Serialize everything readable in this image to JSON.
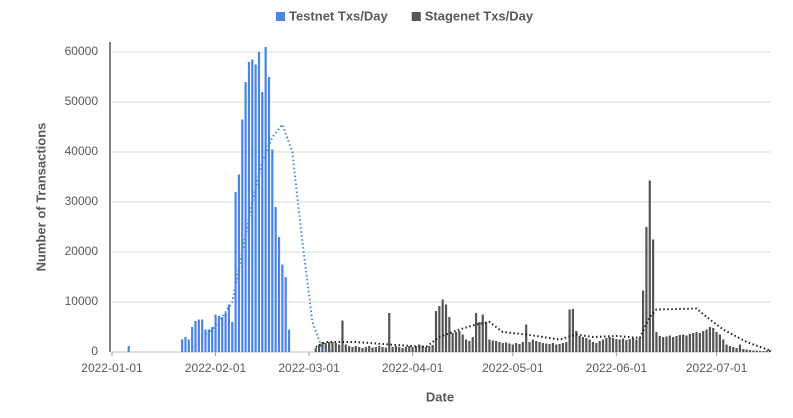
{
  "chart_data": {
    "type": "bar",
    "x_label": "Date",
    "y_label": "Number of Transactions",
    "xlim": [
      "2022-01-01",
      "2022-07-17"
    ],
    "xticks": [
      "2022-01-01",
      "2022-02-01",
      "2022-03-01",
      "2022-04-01",
      "2022-05-01",
      "2022-06-01",
      "2022-07-01"
    ],
    "ylim": [
      0,
      62000
    ],
    "yticks": [
      0,
      10000,
      20000,
      30000,
      40000,
      50000,
      60000
    ],
    "grid": true,
    "legend": "top",
    "series": [
      {
        "name": "Testnet Txs/Day",
        "color": "#4a86e0",
        "style": "bar",
        "x": [
          "2022-01-06",
          "2022-01-22",
          "2022-01-23",
          "2022-01-24",
          "2022-01-25",
          "2022-01-26",
          "2022-01-27",
          "2022-01-28",
          "2022-01-29",
          "2022-01-30",
          "2022-01-31",
          "2022-02-01",
          "2022-02-02",
          "2022-02-03",
          "2022-02-04",
          "2022-02-05",
          "2022-02-06",
          "2022-02-07",
          "2022-02-08",
          "2022-02-09",
          "2022-02-10",
          "2022-02-11",
          "2022-02-12",
          "2022-02-13",
          "2022-02-14",
          "2022-02-15",
          "2022-02-16",
          "2022-02-17",
          "2022-02-18",
          "2022-02-19",
          "2022-02-20",
          "2022-02-21",
          "2022-02-22",
          "2022-02-23"
        ],
        "values": [
          1200,
          2500,
          3000,
          2500,
          5000,
          6200,
          6500,
          6500,
          4500,
          4500,
          5000,
          7500,
          7200,
          7000,
          7800,
          9500,
          6000,
          32000,
          35500,
          46500,
          54000,
          58000,
          58500,
          57500,
          60000,
          52000,
          61000,
          55000,
          40500,
          29000,
          23000,
          17500,
          15000,
          4500
        ]
      },
      {
        "name": "Stagenet Txs/Day",
        "color": "#555555",
        "style": "bar",
        "x": [
          "2022-03-03",
          "2022-03-04",
          "2022-03-05",
          "2022-03-06",
          "2022-03-07",
          "2022-03-08",
          "2022-03-09",
          "2022-03-10",
          "2022-03-11",
          "2022-03-12",
          "2022-03-13",
          "2022-03-14",
          "2022-03-15",
          "2022-03-16",
          "2022-03-17",
          "2022-03-18",
          "2022-03-19",
          "2022-03-20",
          "2022-03-21",
          "2022-03-22",
          "2022-03-23",
          "2022-03-24",
          "2022-03-25",
          "2022-03-26",
          "2022-03-27",
          "2022-03-28",
          "2022-03-29",
          "2022-03-30",
          "2022-03-31",
          "2022-04-01",
          "2022-04-02",
          "2022-04-03",
          "2022-04-04",
          "2022-04-05",
          "2022-04-06",
          "2022-04-07",
          "2022-04-08",
          "2022-04-09",
          "2022-04-10",
          "2022-04-11",
          "2022-04-12",
          "2022-04-13",
          "2022-04-14",
          "2022-04-15",
          "2022-04-16",
          "2022-04-17",
          "2022-04-18",
          "2022-04-19",
          "2022-04-20",
          "2022-04-21",
          "2022-04-22",
          "2022-04-23",
          "2022-04-24",
          "2022-04-25",
          "2022-04-26",
          "2022-04-27",
          "2022-04-28",
          "2022-04-29",
          "2022-04-30",
          "2022-05-01",
          "2022-05-02",
          "2022-05-03",
          "2022-05-04",
          "2022-05-05",
          "2022-05-06",
          "2022-05-07",
          "2022-05-08",
          "2022-05-09",
          "2022-05-10",
          "2022-05-11",
          "2022-05-12",
          "2022-05-13",
          "2022-05-14",
          "2022-05-15",
          "2022-05-16",
          "2022-05-17",
          "2022-05-18",
          "2022-05-19",
          "2022-05-20",
          "2022-05-21",
          "2022-05-22",
          "2022-05-23",
          "2022-05-24",
          "2022-05-25",
          "2022-05-26",
          "2022-05-27",
          "2022-05-28",
          "2022-05-29",
          "2022-05-30",
          "2022-05-31",
          "2022-06-01",
          "2022-06-02",
          "2022-06-03",
          "2022-06-04",
          "2022-06-05",
          "2022-06-06",
          "2022-06-07",
          "2022-06-08",
          "2022-06-09",
          "2022-06-10",
          "2022-06-11",
          "2022-06-12",
          "2022-06-13",
          "2022-06-14",
          "2022-06-15",
          "2022-06-16",
          "2022-06-17",
          "2022-06-18",
          "2022-06-19",
          "2022-06-20",
          "2022-06-21",
          "2022-06-22",
          "2022-06-23",
          "2022-06-24",
          "2022-06-25",
          "2022-06-26",
          "2022-06-27",
          "2022-06-28",
          "2022-06-29",
          "2022-06-30",
          "2022-07-01",
          "2022-07-02",
          "2022-07-03",
          "2022-07-04",
          "2022-07-05",
          "2022-07-06",
          "2022-07-07",
          "2022-07-08",
          "2022-07-09",
          "2022-07-10",
          "2022-07-11",
          "2022-07-12",
          "2022-07-13",
          "2022-07-14",
          "2022-07-15",
          "2022-07-16",
          "2022-07-17"
        ],
        "values": [
          800,
          1500,
          2000,
          1800,
          2000,
          2000,
          1800,
          1500,
          6300,
          1500,
          1200,
          1000,
          1200,
          1000,
          800,
          1000,
          1200,
          900,
          1000,
          1200,
          1000,
          900,
          7800,
          1000,
          1200,
          1000,
          800,
          1000,
          1200,
          1000,
          1200,
          1500,
          1300,
          1000,
          1200,
          1400,
          8200,
          9200,
          10500,
          9500,
          7000,
          3800,
          4000,
          4200,
          3500,
          2500,
          2200,
          3000,
          7800,
          6000,
          7500,
          6000,
          2500,
          2300,
          2200,
          2000,
          1800,
          1900,
          1700,
          1500,
          1800,
          1600,
          2000,
          5500,
          2000,
          2500,
          2200,
          2000,
          1800,
          1700,
          1600,
          1800,
          1500,
          1600,
          1800,
          2000,
          8500,
          8600,
          4200,
          3200,
          3000,
          2800,
          2500,
          2000,
          1800,
          2200,
          2500,
          2800,
          3000,
          2800,
          2600,
          2500,
          2700,
          2400,
          2600,
          2800,
          2500,
          2800,
          12300,
          25000,
          34300,
          22500,
          4000,
          3200,
          3000,
          3100,
          3300,
          3000,
          3200,
          3400,
          3500,
          3300,
          3600,
          3800,
          4000,
          3800,
          4200,
          4500,
          5000,
          4800,
          4000,
          3500,
          2500,
          1500,
          1200,
          1000,
          800,
          1500,
          600,
          500,
          400,
          300,
          300,
          200,
          200,
          300,
          400
        ]
      },
      {
        "color": "#4a86e0",
        "style": "dotted",
        "x": [
          "2022-01-25",
          "2022-01-29",
          "2022-02-02",
          "2022-02-06",
          "2022-02-09",
          "2022-02-12",
          "2022-02-15",
          "2022-02-18",
          "2022-02-21",
          "2022-02-24",
          "2022-02-27",
          "2022-03-02",
          "2022-03-05",
          "2022-03-08"
        ],
        "values": [
          1000,
          3000,
          6000,
          10000,
          20000,
          30000,
          38000,
          43000,
          45500,
          40000,
          22000,
          6000,
          500,
          0
        ]
      },
      {
        "color": "#222222",
        "style": "dotted",
        "x": [
          "2022-03-03",
          "2022-03-06",
          "2022-03-15",
          "2022-03-25",
          "2022-04-05",
          "2022-04-09",
          "2022-04-15",
          "2022-04-20",
          "2022-04-24",
          "2022-04-28",
          "2022-05-05",
          "2022-05-15",
          "2022-05-20",
          "2022-05-25",
          "2022-06-01",
          "2022-06-08",
          "2022-06-11",
          "2022-06-13",
          "2022-06-25",
          "2022-06-28",
          "2022-07-03",
          "2022-07-10",
          "2022-07-17"
        ],
        "values": [
          1000,
          2000,
          2000,
          1500,
          1000,
          3000,
          4500,
          5500,
          6000,
          4000,
          3500,
          2500,
          3500,
          3000,
          3200,
          2800,
          7000,
          8500,
          8700,
          7000,
          4500,
          2000,
          300
        ]
      }
    ]
  }
}
